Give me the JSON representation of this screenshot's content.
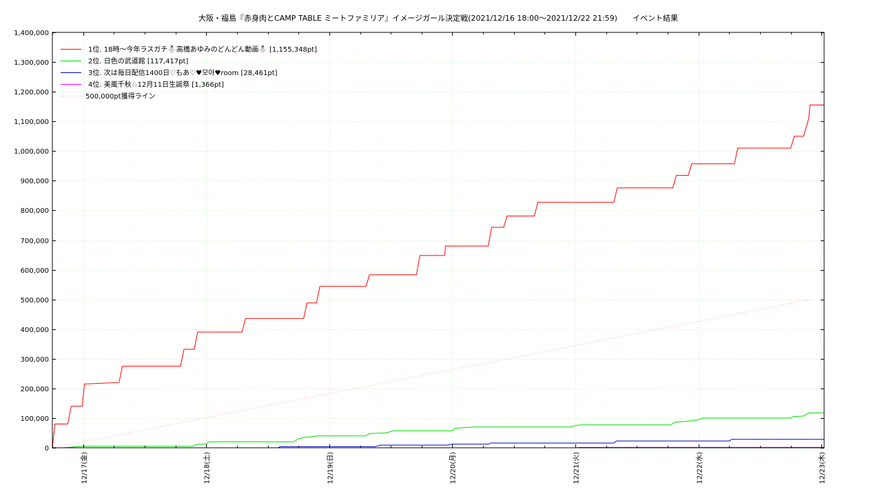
{
  "chart_data": {
    "type": "line",
    "title": "大阪・福島『赤身肉とCAMP TABLE ミートファミリア』イメージガール決定戦(2021/12/16 18:00～2021/12/22 21:59)　　イベント結果",
    "xlabel": "",
    "ylabel": "",
    "ylim": [
      0,
      1400000
    ],
    "y_ticks": [
      0,
      100000,
      200000,
      300000,
      400000,
      500000,
      600000,
      700000,
      800000,
      900000,
      1000000,
      1100000,
      1200000,
      1300000,
      1400000
    ],
    "y_tick_labels": [
      "0",
      "100,000",
      "200,000",
      "300,000",
      "400,000",
      "500,000",
      "600,000",
      "700,000",
      "800,000",
      "900,000",
      "1,000,000",
      "1,100,000",
      "1,200,000",
      "1,300,000",
      "1,400,000"
    ],
    "x_range": [
      "2021-12-16 18:00",
      "2021-12-23 00:30"
    ],
    "x_ticks": [
      "2021-12-17 00:00",
      "2021-12-18 00:00",
      "2021-12-19 00:00",
      "2021-12-20 00:00",
      "2021-12-21 00:00",
      "2021-12-22 00:00",
      "2021-12-23 00:00"
    ],
    "x_tick_labels": [
      "12/17(金)",
      "12/18(土)",
      "12/19(日)",
      "12/20(月)",
      "12/21(火)",
      "12/22(水)",
      "12/23(木)"
    ],
    "grid": true,
    "legend_position": "top-left",
    "series": [
      {
        "name": "1位. 18時～今年ラスガチ⛄高橋あゆみのどんどん動画⛄ [1,155,348pt]",
        "color": "#ff0000",
        "style": "solid",
        "points": [
          [
            "2021-12-16 18:00",
            0
          ],
          [
            "2021-12-16 18:30",
            80000
          ],
          [
            "2021-12-16 21:00",
            80000
          ],
          [
            "2021-12-16 21:40",
            140000
          ],
          [
            "2021-12-16 23:50",
            140000
          ],
          [
            "2021-12-17 00:15",
            215000
          ],
          [
            "2021-12-17 07:00",
            220000
          ],
          [
            "2021-12-17 07:40",
            275000
          ],
          [
            "2021-12-17 19:00",
            275000
          ],
          [
            "2021-12-17 19:40",
            332000
          ],
          [
            "2021-12-17 21:40",
            332000
          ],
          [
            "2021-12-17 22:20",
            390000
          ],
          [
            "2021-12-18 07:00",
            390000
          ],
          [
            "2021-12-18 07:40",
            436000
          ],
          [
            "2021-12-18 19:00",
            436000
          ],
          [
            "2021-12-18 19:40",
            488000
          ],
          [
            "2021-12-18 21:30",
            488000
          ],
          [
            "2021-12-18 22:10",
            544000
          ],
          [
            "2021-12-19 07:10",
            544000
          ],
          [
            "2021-12-19 07:50",
            583000
          ],
          [
            "2021-12-19 17:00",
            583000
          ],
          [
            "2021-12-19 17:40",
            648000
          ],
          [
            "2021-12-19 22:30",
            648000
          ],
          [
            "2021-12-19 22:40",
            680000
          ],
          [
            "2021-12-20 07:00",
            680000
          ],
          [
            "2021-12-20 07:40",
            743000
          ],
          [
            "2021-12-20 10:00",
            743000
          ],
          [
            "2021-12-20 10:40",
            781000
          ],
          [
            "2021-12-20 16:00",
            781000
          ],
          [
            "2021-12-20 16:40",
            827000
          ],
          [
            "2021-12-21 07:30",
            827000
          ],
          [
            "2021-12-21 08:10",
            876000
          ],
          [
            "2021-12-21 19:00",
            876000
          ],
          [
            "2021-12-21 19:40",
            918000
          ],
          [
            "2021-12-21 22:00",
            918000
          ],
          [
            "2021-12-21 22:40",
            957000
          ],
          [
            "2021-12-22 07:00",
            957000
          ],
          [
            "2021-12-22 07:40",
            1010000
          ],
          [
            "2021-12-22 18:00",
            1010000
          ],
          [
            "2021-12-22 18:40",
            1050000
          ],
          [
            "2021-12-22 20:30",
            1050000
          ],
          [
            "2021-12-22 21:30",
            1110000
          ],
          [
            "2021-12-22 21:45",
            1155348
          ],
          [
            "2021-12-23 00:30",
            1155348
          ]
        ]
      },
      {
        "name": "2位. 日色の武道館 [117,417pt]",
        "color": "#00dd00",
        "style": "solid",
        "points": [
          [
            "2021-12-16 18:00",
            0
          ],
          [
            "2021-12-16 20:00",
            0
          ],
          [
            "2021-12-17 00:00",
            5000
          ],
          [
            "2021-12-17 21:20",
            5000
          ],
          [
            "2021-12-17 22:20",
            12000
          ],
          [
            "2021-12-18 00:00",
            12000
          ],
          [
            "2021-12-18 00:30",
            20000
          ],
          [
            "2021-12-18 17:00",
            20000
          ],
          [
            "2021-12-18 18:00",
            30000
          ],
          [
            "2021-12-18 19:00",
            35000
          ],
          [
            "2021-12-18 22:00",
            40000
          ],
          [
            "2021-12-19 07:00",
            40000
          ],
          [
            "2021-12-19 08:00",
            48000
          ],
          [
            "2021-12-19 11:00",
            50000
          ],
          [
            "2021-12-19 12:30",
            57000
          ],
          [
            "2021-12-20 00:00",
            57000
          ],
          [
            "2021-12-20 00:30",
            66000
          ],
          [
            "2021-12-20 04:00",
            70000
          ],
          [
            "2021-12-20 23:00",
            70000
          ],
          [
            "2021-12-21 00:00",
            75000
          ],
          [
            "2021-12-21 01:00",
            77000
          ],
          [
            "2021-12-21 18:30",
            77000
          ],
          [
            "2021-12-21 19:30",
            86000
          ],
          [
            "2021-12-21 22:00",
            90000
          ],
          [
            "2021-12-22 00:00",
            95000
          ],
          [
            "2021-12-22 01:00",
            100000
          ],
          [
            "2021-12-22 18:00",
            100000
          ],
          [
            "2021-12-22 18:30",
            105000
          ],
          [
            "2021-12-22 20:30",
            107000
          ],
          [
            "2021-12-22 21:30",
            117417
          ],
          [
            "2021-12-23 00:30",
            117417
          ]
        ]
      },
      {
        "name": "3位. 次は毎日配信1400日♡もあ♡♥모아♥room [28,461pt]",
        "color": "#0000cc",
        "style": "solid",
        "points": [
          [
            "2021-12-16 18:00",
            0
          ],
          [
            "2021-12-18 14:00",
            0
          ],
          [
            "2021-12-18 14:30",
            4000
          ],
          [
            "2021-12-19 09:00",
            4000
          ],
          [
            "2021-12-19 10:00",
            9000
          ],
          [
            "2021-12-19 23:00",
            9000
          ],
          [
            "2021-12-20 00:00",
            12000
          ],
          [
            "2021-12-20 07:00",
            12000
          ],
          [
            "2021-12-20 07:30",
            16000
          ],
          [
            "2021-12-21 07:30",
            16000
          ],
          [
            "2021-12-21 08:00",
            23000
          ],
          [
            "2021-12-22 06:00",
            23000
          ],
          [
            "2021-12-22 06:30",
            28461
          ],
          [
            "2021-12-23 00:30",
            28461
          ]
        ]
      },
      {
        "name": "4位. 美風千秋♘12月11日生誕祭 [1,366pt]",
        "color": "#ff00ff",
        "style": "solid",
        "points": [
          [
            "2021-12-16 18:00",
            0
          ],
          [
            "2021-12-21 00:00",
            0
          ],
          [
            "2021-12-21 01:00",
            1366
          ],
          [
            "2021-12-23 00:30",
            1366
          ]
        ]
      },
      {
        "name": "500,000pt獲得ライン",
        "color": "#ff9999",
        "style": "dotted",
        "points": [
          [
            "2021-12-16 18:00",
            0
          ],
          [
            "2021-12-22 22:00",
            500000
          ]
        ]
      }
    ]
  }
}
